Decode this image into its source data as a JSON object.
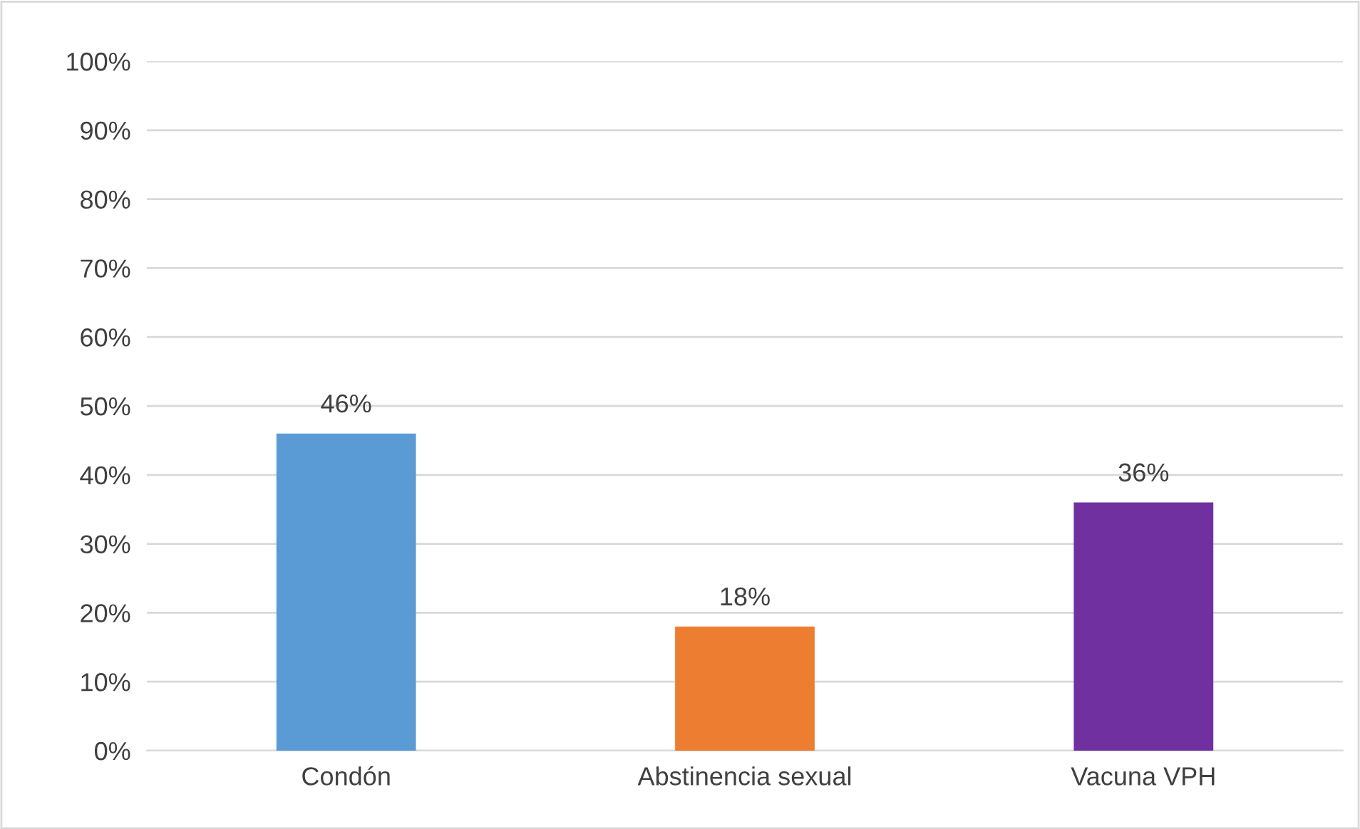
{
  "chart_data": {
    "type": "bar",
    "categories": [
      "Condón",
      "Abstinencia sexual",
      "Vacuna VPH"
    ],
    "values": [
      46,
      18,
      36
    ],
    "colors": [
      "#5b9bd5",
      "#ed7d31",
      "#7030a0"
    ],
    "value_labels": [
      "46%",
      "18%",
      "36%"
    ],
    "ylim": [
      0,
      100
    ],
    "yticks": [
      {
        "value": 0,
        "label": "0%"
      },
      {
        "value": 10,
        "label": "10%"
      },
      {
        "value": 20,
        "label": "20%"
      },
      {
        "value": 30,
        "label": "30%"
      },
      {
        "value": 40,
        "label": "40%"
      },
      {
        "value": 50,
        "label": "50%"
      },
      {
        "value": 60,
        "label": "60%"
      },
      {
        "value": 70,
        "label": "70%"
      },
      {
        "value": 80,
        "label": "80%"
      },
      {
        "value": 90,
        "label": "90%"
      },
      {
        "value": 100,
        "label": "100%"
      }
    ],
    "grid": "y",
    "legend": false
  }
}
